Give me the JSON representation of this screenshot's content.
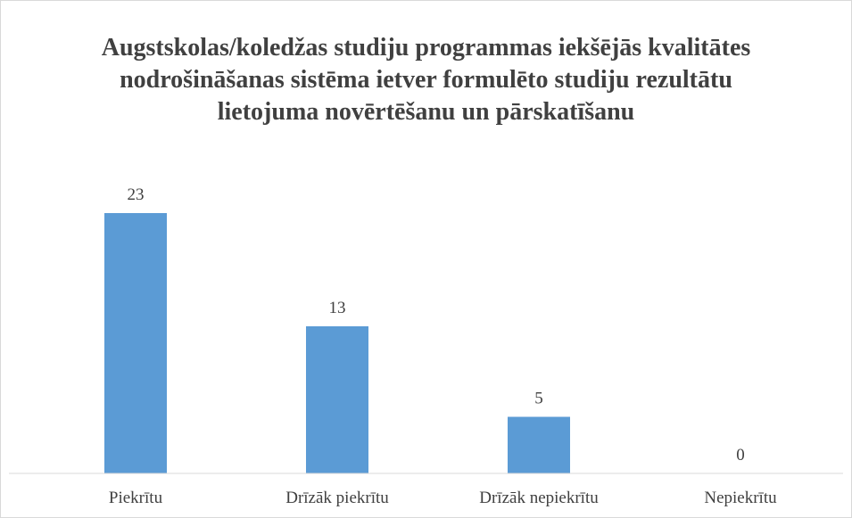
{
  "chart_data": {
    "type": "bar",
    "title": "Augstskolas/koledžas studiju programmas iekšējās kvalitātes nodrošināšanas sistēma ietver formulēto studiju rezultātu lietojuma novērtēšanu un pārskatīšanu",
    "categories": [
      "Piekrītu",
      "Drīzāk piekrītu",
      "Drīzāk nepiekrītu",
      "Nepiekrītu"
    ],
    "values": [
      23,
      13,
      5,
      0
    ],
    "color": "#5b9bd5"
  }
}
